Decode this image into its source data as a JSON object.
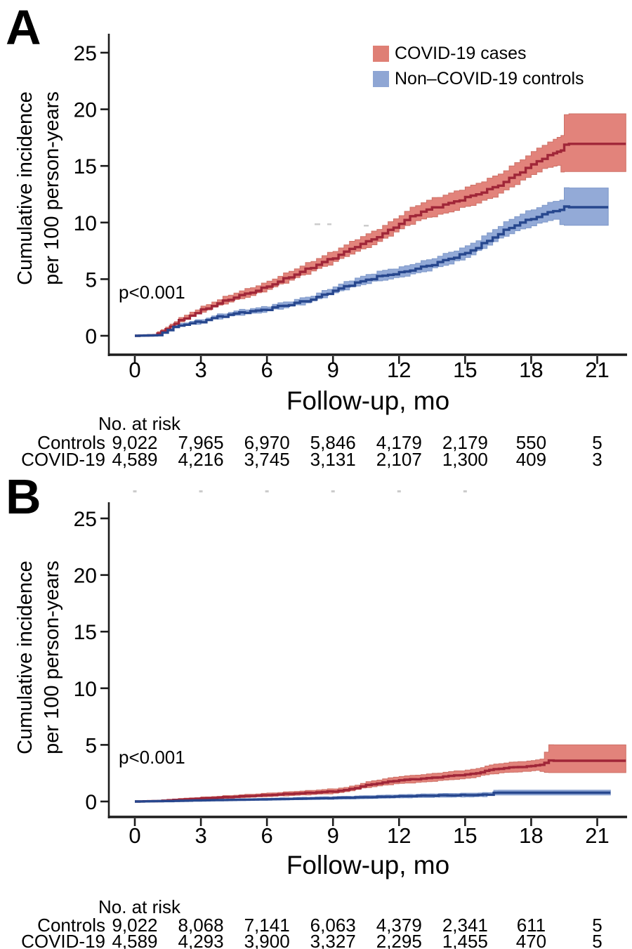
{
  "figure": {
    "panel_a_label": "A",
    "panel_b_label": "B",
    "y_axis_label_line1": "Cumulative incidence",
    "y_axis_label_line2": "per 100 person-years",
    "x_axis_label": "Follow-up, mo",
    "legend": [
      {
        "label": "COVID-19 cases",
        "color": "#df7f75"
      },
      {
        "label": "Non–COVID-19 controls",
        "color": "#8fa6d4"
      }
    ]
  },
  "chart_data": [
    {
      "panel": "A",
      "type": "line",
      "subtype": "cumulative-incidence-step-curves-with-CI-bands",
      "xlabel": "Follow-up, mo",
      "ylabel": "Cumulative incidence per 100 person-years",
      "annotation": "p<0.001",
      "xlim": [
        0,
        22.3
      ],
      "ylim": [
        0,
        25
      ],
      "xticks": [
        0,
        3,
        6,
        9,
        12,
        15,
        18,
        21
      ],
      "yticks": [
        0,
        5,
        10,
        15,
        20,
        25
      ],
      "grid": false,
      "legend_position": "top-right-inside",
      "series": [
        {
          "name": "COVID-19 cases",
          "line_color": "#a02638",
          "band_color": "#e2837b",
          "band_edge": "#ce7066",
          "points": [
            [
              0,
              0,
              0,
              0
            ],
            [
              0.85,
              0.05,
              0,
              0.12
            ],
            [
              1.2,
              0.35,
              0.22,
              0.5
            ],
            [
              1.6,
              0.85,
              0.65,
              1.05
            ],
            [
              2,
              1.3,
              1.05,
              1.55
            ],
            [
              2.5,
              1.8,
              1.5,
              2.1
            ],
            [
              3,
              2.25,
              1.95,
              2.55
            ],
            [
              3.5,
              2.65,
              2.3,
              3.0
            ],
            [
              4,
              3.05,
              2.68,
              3.42
            ],
            [
              4.5,
              3.4,
              3.0,
              3.8
            ],
            [
              5,
              3.7,
              3.28,
              4.12
            ],
            [
              5.5,
              4.0,
              3.56,
              4.44
            ],
            [
              6,
              4.35,
              3.9,
              4.8
            ],
            [
              6.5,
              4.8,
              4.32,
              5.28
            ],
            [
              7,
              5.2,
              4.7,
              5.7
            ],
            [
              7.5,
              5.65,
              5.12,
              6.18
            ],
            [
              8,
              6.05,
              5.5,
              6.6
            ],
            [
              8.5,
              6.5,
              5.92,
              7.08
            ],
            [
              9,
              6.9,
              6.3,
              7.5
            ],
            [
              9.5,
              7.4,
              6.78,
              8.02
            ],
            [
              10,
              7.9,
              7.25,
              8.55
            ],
            [
              10.5,
              8.3,
              7.62,
              8.98
            ],
            [
              11,
              8.75,
              8.05,
              9.45
            ],
            [
              11.5,
              9.3,
              8.57,
              10.03
            ],
            [
              12,
              9.9,
              9.15,
              10.65
            ],
            [
              12.5,
              10.5,
              9.7,
              11.3
            ],
            [
              13,
              10.95,
              10.13,
              11.77
            ],
            [
              13.5,
              11.3,
              10.45,
              12.15
            ],
            [
              14,
              11.55,
              10.68,
              12.42
            ],
            [
              14.5,
              11.85,
              10.95,
              12.75
            ],
            [
              15,
              12.2,
              11.28,
              13.12
            ],
            [
              15.5,
              12.5,
              11.55,
              13.45
            ],
            [
              16,
              12.9,
              11.92,
              13.88
            ],
            [
              16.5,
              13.3,
              12.3,
              14.3
            ],
            [
              17,
              13.9,
              12.85,
              14.95
            ],
            [
              17.5,
              14.5,
              13.42,
              15.58
            ],
            [
              18,
              15.1,
              13.97,
              16.23
            ],
            [
              18.5,
              15.7,
              14.52,
              16.88
            ],
            [
              19,
              16.1,
              14.88,
              17.32
            ],
            [
              19.35,
              16.4,
              15.1,
              17.7
            ],
            [
              19.5,
              16.95,
              14.5,
              19.6
            ],
            [
              22.3,
              16.95,
              14.5,
              19.6
            ]
          ]
        },
        {
          "name": "Non–COVID-19 controls",
          "line_color": "#27478e",
          "band_color": "#93aad7",
          "band_edge": "#7e98c9",
          "points": [
            [
              0,
              0,
              0,
              0
            ],
            [
              1,
              0.05,
              0,
              0.12
            ],
            [
              1.5,
              0.5,
              0.38,
              0.64
            ],
            [
              2,
              0.92,
              0.78,
              1.08
            ],
            [
              2.5,
              1.1,
              0.94,
              1.28
            ],
            [
              3,
              1.25,
              1.08,
              1.44
            ],
            [
              3.5,
              1.55,
              1.36,
              1.76
            ],
            [
              4,
              1.75,
              1.55,
              1.97
            ],
            [
              4.5,
              1.95,
              1.73,
              2.19
            ],
            [
              5,
              2.1,
              1.87,
              2.35
            ],
            [
              5.5,
              2.2,
              1.96,
              2.46
            ],
            [
              6,
              2.35,
              2.1,
              2.62
            ],
            [
              6.5,
              2.6,
              2.33,
              2.89
            ],
            [
              7,
              2.75,
              2.47,
              3.05
            ],
            [
              7.5,
              3.0,
              2.7,
              3.32
            ],
            [
              8,
              3.2,
              2.88,
              3.54
            ],
            [
              8.5,
              3.6,
              3.26,
              3.96
            ],
            [
              9,
              3.95,
              3.59,
              4.33
            ],
            [
              9.5,
              4.35,
              3.97,
              4.75
            ],
            [
              10,
              4.65,
              4.25,
              5.07
            ],
            [
              10.5,
              4.95,
              4.53,
              5.39
            ],
            [
              11,
              5.2,
              4.76,
              5.66
            ],
            [
              11.5,
              5.4,
              4.94,
              5.88
            ],
            [
              12,
              5.55,
              5.08,
              6.04
            ],
            [
              12.5,
              5.8,
              5.31,
              6.31
            ],
            [
              13,
              6.05,
              5.54,
              6.58
            ],
            [
              13.5,
              6.3,
              5.77,
              6.85
            ],
            [
              14,
              6.65,
              6.1,
              7.22
            ],
            [
              14.5,
              6.95,
              6.38,
              7.54
            ],
            [
              15,
              7.3,
              6.7,
              7.92
            ],
            [
              15.5,
              7.8,
              7.17,
              8.45
            ],
            [
              16,
              8.4,
              7.74,
              9.08
            ],
            [
              16.5,
              9.0,
              8.31,
              9.71
            ],
            [
              17,
              9.55,
              8.83,
              10.29
            ],
            [
              17.5,
              10.0,
              9.24,
              10.78
            ],
            [
              18,
              10.35,
              9.57,
              11.15
            ],
            [
              18.5,
              10.7,
              9.89,
              11.53
            ],
            [
              19,
              11.05,
              10.21,
              11.91
            ],
            [
              19.3,
              11.15,
              10.3,
              12.02
            ],
            [
              19.5,
              11.35,
              9.75,
              13.05
            ],
            [
              21.5,
              11.35,
              9.75,
              13.05
            ]
          ]
        }
      ]
    },
    {
      "panel": "B",
      "type": "line",
      "subtype": "cumulative-incidence-step-curves-with-CI-bands",
      "xlabel": "Follow-up, mo",
      "ylabel": "Cumulative incidence per 100 person-years",
      "annotation": "p<0.001",
      "xlim": [
        0,
        22.3
      ],
      "ylim": [
        0,
        25
      ],
      "xticks": [
        0,
        3,
        6,
        9,
        12,
        15,
        18,
        21
      ],
      "yticks": [
        0,
        5,
        10,
        15,
        20,
        25
      ],
      "grid": false,
      "legend_position": "none",
      "series": [
        {
          "name": "COVID-19 cases",
          "line_color": "#a02638",
          "band_color": "#e2837b",
          "band_edge": "#ce7066",
          "points": [
            [
              0,
              0,
              0,
              0
            ],
            [
              1,
              0.04,
              0,
              0.1
            ],
            [
              1.5,
              0.11,
              0.05,
              0.18
            ],
            [
              2,
              0.17,
              0.1,
              0.26
            ],
            [
              2.5,
              0.22,
              0.14,
              0.32
            ],
            [
              3,
              0.27,
              0.18,
              0.38
            ],
            [
              3.5,
              0.32,
              0.22,
              0.44
            ],
            [
              4,
              0.37,
              0.26,
              0.5
            ],
            [
              4.5,
              0.42,
              0.3,
              0.56
            ],
            [
              5,
              0.47,
              0.34,
              0.62
            ],
            [
              5.5,
              0.52,
              0.38,
              0.68
            ],
            [
              6,
              0.57,
              0.42,
              0.74
            ],
            [
              6.5,
              0.62,
              0.46,
              0.8
            ],
            [
              7,
              0.68,
              0.51,
              0.87
            ],
            [
              7.5,
              0.73,
              0.55,
              0.93
            ],
            [
              8,
              0.78,
              0.59,
              0.99
            ],
            [
              8.5,
              0.84,
              0.64,
              1.06
            ],
            [
              9,
              0.9,
              0.69,
              1.13
            ],
            [
              9.5,
              1.0,
              0.78,
              1.24
            ],
            [
              10,
              1.2,
              0.96,
              1.46
            ],
            [
              10.5,
              1.45,
              1.18,
              1.74
            ],
            [
              11,
              1.6,
              1.31,
              1.91
            ],
            [
              11.5,
              1.75,
              1.44,
              2.08
            ],
            [
              12,
              1.88,
              1.56,
              2.22
            ],
            [
              12.5,
              1.95,
              1.62,
              2.3
            ],
            [
              13,
              2.02,
              1.68,
              2.38
            ],
            [
              13.5,
              2.1,
              1.75,
              2.47
            ],
            [
              14,
              2.2,
              1.84,
              2.58
            ],
            [
              14.5,
              2.3,
              1.93,
              2.69
            ],
            [
              15,
              2.37,
              1.99,
              2.77
            ],
            [
              15.5,
              2.5,
              2.11,
              2.91
            ],
            [
              15.9,
              2.7,
              2.29,
              3.13
            ],
            [
              16.3,
              2.85,
              2.42,
              3.3
            ],
            [
              17,
              3.0,
              2.56,
              3.46
            ],
            [
              17.6,
              3.07,
              2.62,
              3.54
            ],
            [
              18,
              3.12,
              2.66,
              3.6
            ],
            [
              18.4,
              3.25,
              2.77,
              3.75
            ],
            [
              18.8,
              3.6,
              2.55,
              5.0
            ],
            [
              22.3,
              3.6,
              2.55,
              5.0
            ]
          ]
        },
        {
          "name": "Non–COVID-19 controls",
          "line_color": "#27478e",
          "band_color": "#93aad7",
          "band_edge": "#7e98c9",
          "points": [
            [
              0,
              0,
              0,
              0
            ],
            [
              1.5,
              0.04,
              0.01,
              0.08
            ],
            [
              2,
              0.06,
              0.02,
              0.11
            ],
            [
              3,
              0.1,
              0.05,
              0.16
            ],
            [
              4,
              0.13,
              0.07,
              0.2
            ],
            [
              5,
              0.16,
              0.09,
              0.24
            ],
            [
              6,
              0.19,
              0.11,
              0.28
            ],
            [
              7,
              0.23,
              0.14,
              0.33
            ],
            [
              8,
              0.27,
              0.17,
              0.38
            ],
            [
              9,
              0.31,
              0.2,
              0.43
            ],
            [
              10,
              0.35,
              0.23,
              0.48
            ],
            [
              11,
              0.4,
              0.27,
              0.54
            ],
            [
              12,
              0.45,
              0.31,
              0.6
            ],
            [
              13,
              0.5,
              0.35,
              0.66
            ],
            [
              14,
              0.54,
              0.38,
              0.7
            ],
            [
              15,
              0.56,
              0.4,
              0.73
            ],
            [
              16,
              0.6,
              0.43,
              0.78
            ],
            [
              16.3,
              0.78,
              0.58,
              1.0
            ],
            [
              21.6,
              0.78,
              0.58,
              1.0
            ]
          ]
        }
      ]
    }
  ],
  "risk_tables": [
    {
      "panel": "A",
      "header": "No. at risk",
      "time_months": [
        0,
        3,
        6,
        9,
        12,
        15,
        18,
        21
      ],
      "rows": [
        {
          "label": "Controls",
          "values": [
            "9,022",
            "7,965",
            "6,970",
            "5,846",
            "4,179",
            "2,179",
            "550",
            "5"
          ]
        },
        {
          "label": "COVID-19",
          "values": [
            "4,589",
            "4,216",
            "3,745",
            "3,131",
            "2,107",
            "1,300",
            "409",
            "3"
          ]
        }
      ]
    },
    {
      "panel": "B",
      "header": "No. at risk",
      "time_months": [
        0,
        3,
        6,
        9,
        12,
        15,
        18,
        21
      ],
      "rows": [
        {
          "label": "Controls",
          "values": [
            "9,022",
            "8,068",
            "7,141",
            "6,063",
            "4,379",
            "2,341",
            "611",
            "5"
          ]
        },
        {
          "label": "COVID-19",
          "values": [
            "4,589",
            "4,293",
            "3,900",
            "3,327",
            "2,295",
            "1,455",
            "470",
            "5"
          ]
        }
      ]
    }
  ]
}
